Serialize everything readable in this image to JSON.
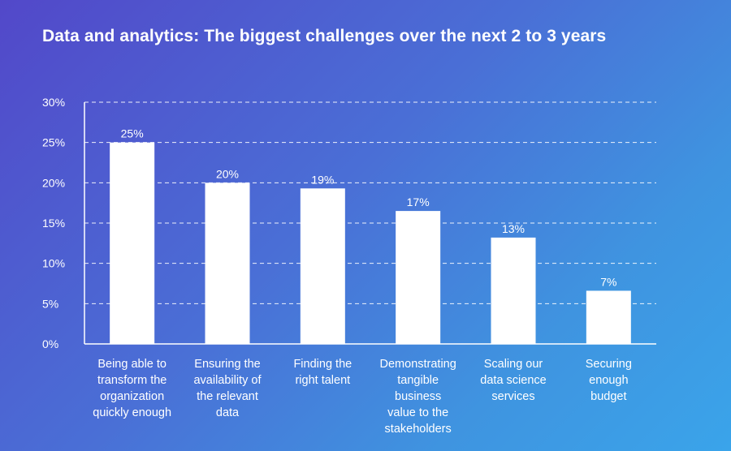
{
  "chart_data": {
    "type": "bar",
    "title": "Data and analytics: The biggest challenges over the next 2 to 3 years",
    "categories": [
      [
        "Being able to",
        "transform the",
        "organization",
        "quickly enough"
      ],
      [
        "Ensuring the",
        "availability of",
        "the relevant",
        "data"
      ],
      [
        "Finding the",
        "right talent"
      ],
      [
        "Demonstrating",
        "tangible",
        "business",
        "value to the",
        "stakeholders"
      ],
      [
        "Scaling our",
        "data science",
        "services"
      ],
      [
        "Securing",
        "enough",
        "budget"
      ]
    ],
    "values": [
      25,
      20,
      19.3,
      16.5,
      13.2,
      6.6
    ],
    "data_labels": [
      "25%",
      "20%",
      "19%",
      "17%",
      "13%",
      "7%"
    ],
    "ylim": [
      0,
      30
    ],
    "yticks": [
      0,
      5,
      10,
      15,
      20,
      25,
      30
    ],
    "ytick_labels": [
      "0%",
      "5%",
      "10%",
      "15%",
      "20%",
      "25%",
      "30%"
    ],
    "xlabel": "",
    "ylabel": "",
    "grid": "horizontal dashed",
    "colors": {
      "bars": "#ffffff",
      "grid": "#ffffff",
      "axis": "#ffffff"
    }
  }
}
